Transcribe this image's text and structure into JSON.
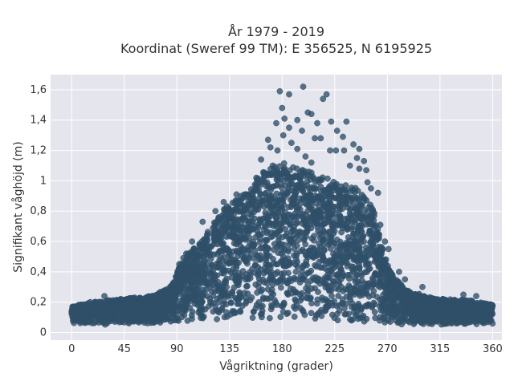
{
  "chart_data": {
    "type": "scatter",
    "title": "År 1979 - 2019",
    "subtitle": "Koordinat (Sweref 99 TM): E 356525, N 6195925",
    "xlabel": "Vågriktning (grader)",
    "ylabel": "Signifikant våghöjd (m)",
    "xlim": [
      -18,
      368
    ],
    "ylim": [
      -0.05,
      1.7
    ],
    "x_ticks": [
      0,
      45,
      90,
      135,
      180,
      225,
      270,
      315,
      360
    ],
    "y_ticks": [
      0,
      0.2,
      0.4,
      0.6,
      0.8,
      1,
      1.2,
      1.4,
      1.6
    ],
    "y_tick_labels": [
      "0",
      "0,2",
      "0,4",
      "0,6",
      "0,8",
      "1",
      "1,2",
      "1,4",
      "1,6"
    ],
    "grid": true,
    "colors": {
      "marker": "#2f5069",
      "plot_background": "#e5e5ee",
      "grid": "#ffffff"
    },
    "envelope_max": [
      [
        0,
        0.17
      ],
      [
        20,
        0.2
      ],
      [
        45,
        0.22
      ],
      [
        70,
        0.24
      ],
      [
        85,
        0.3
      ],
      [
        95,
        0.48
      ],
      [
        110,
        0.58
      ],
      [
        130,
        0.8
      ],
      [
        150,
        0.92
      ],
      [
        165,
        1.05
      ],
      [
        180,
        1.1
      ],
      [
        200,
        1.05
      ],
      [
        225,
        0.98
      ],
      [
        245,
        0.93
      ],
      [
        258,
        0.8
      ],
      [
        265,
        0.58
      ],
      [
        272,
        0.4
      ],
      [
        285,
        0.28
      ],
      [
        310,
        0.22
      ],
      [
        340,
        0.21
      ],
      [
        360,
        0.18
      ]
    ],
    "envelope_min": [
      [
        0,
        0.05
      ],
      [
        45,
        0.04
      ],
      [
        90,
        0.05
      ],
      [
        135,
        0.05
      ],
      [
        180,
        0.04
      ],
      [
        225,
        0.03
      ],
      [
        240,
        0.01
      ],
      [
        270,
        0.04
      ],
      [
        315,
        0.04
      ],
      [
        360,
        0.05
      ]
    ],
    "outliers": [
      [
        178,
        1.59
      ],
      [
        198,
        1.62
      ],
      [
        186,
        1.57
      ],
      [
        215,
        1.54
      ],
      [
        218,
        1.57
      ],
      [
        180,
        1.48
      ],
      [
        202,
        1.45
      ],
      [
        205,
        1.44
      ],
      [
        175,
        1.38
      ],
      [
        182,
        1.41
      ],
      [
        193,
        1.4
      ],
      [
        210,
        1.38
      ],
      [
        222,
        1.39
      ],
      [
        235,
        1.39
      ],
      [
        186,
        1.35
      ],
      [
        197,
        1.33
      ],
      [
        227,
        1.33
      ],
      [
        168,
        1.27
      ],
      [
        181,
        1.3
      ],
      [
        188,
        1.25
      ],
      [
        208,
        1.28
      ],
      [
        213,
        1.28
      ],
      [
        232,
        1.29
      ],
      [
        170,
        1.22
      ],
      [
        176,
        1.2
      ],
      [
        193,
        1.21
      ],
      [
        221,
        1.2
      ],
      [
        226,
        1.2
      ],
      [
        241,
        1.24
      ],
      [
        246,
        1.21
      ],
      [
        233,
        1.2
      ],
      [
        250,
        1.13
      ],
      [
        244,
        1.15
      ],
      [
        162,
        1.14
      ],
      [
        205,
        1.12
      ],
      [
        200,
        1.16
      ],
      [
        238,
        1.1
      ],
      [
        246,
        1.08
      ],
      [
        252,
        1.07
      ],
      [
        172,
        1.1
      ],
      [
        158,
        1.02
      ],
      [
        253,
        0.99
      ],
      [
        262,
        0.92
      ],
      [
        256,
        0.95
      ],
      [
        141,
        0.91
      ],
      [
        130,
        0.86
      ],
      [
        123,
        0.8
      ],
      [
        112,
        0.73
      ],
      [
        103,
        0.6
      ],
      [
        98,
        0.52
      ],
      [
        92,
        0.45
      ],
      [
        264,
        0.71
      ],
      [
        268,
        0.6
      ],
      [
        271,
        0.55
      ],
      [
        280,
        0.4
      ],
      [
        285,
        0.35
      ],
      [
        300,
        0.3
      ],
      [
        28,
        0.24
      ],
      [
        58,
        0.22
      ],
      [
        335,
        0.25
      ],
      [
        346,
        0.24
      ],
      [
        16,
        0.2
      ],
      [
        40,
        0.19
      ]
    ]
  }
}
